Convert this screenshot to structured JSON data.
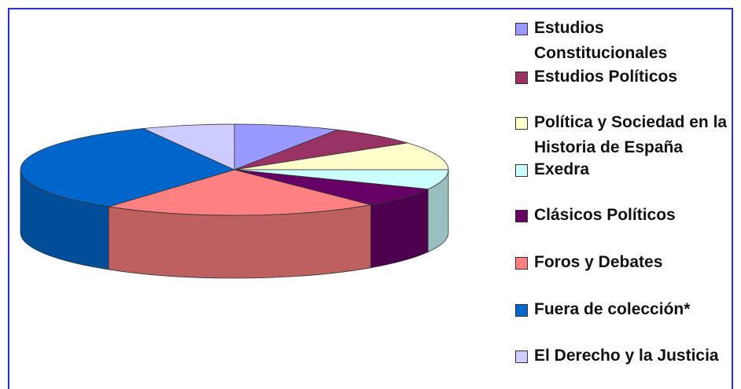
{
  "chart_data": {
    "type": "pie",
    "categories": [
      "Estudios Constitucionales",
      "Estudios Políticos",
      "Política y Sociedad en la Historia de España",
      "Exedra",
      "Clásicos Políticos",
      "Foros y Debates",
      "Fuera de colección*",
      "El Derecho y la Justicia"
    ],
    "values": [
      8,
      7,
      10,
      7,
      7,
      21,
      33,
      7
    ],
    "colors": [
      "#9999ff",
      "#993366",
      "#ffffcc",
      "#ccffff",
      "#660066",
      "#ff8080",
      "#0066cc",
      "#ccccff"
    ],
    "legend": "right"
  }
}
